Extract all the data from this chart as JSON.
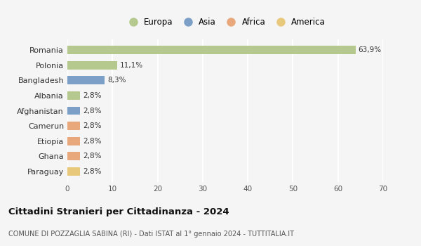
{
  "countries": [
    "Romania",
    "Polonia",
    "Bangladesh",
    "Albania",
    "Afghanistan",
    "Camerun",
    "Etiopia",
    "Ghana",
    "Paraguay"
  ],
  "values": [
    63.9,
    11.1,
    8.3,
    2.8,
    2.8,
    2.8,
    2.8,
    2.8,
    2.8
  ],
  "labels": [
    "63,9%",
    "11,1%",
    "8,3%",
    "2,8%",
    "2,8%",
    "2,8%",
    "2,8%",
    "2,8%",
    "2,8%"
  ],
  "colors": [
    "#b5c98e",
    "#b5c98e",
    "#7b9fc7",
    "#b5c98e",
    "#7b9fc7",
    "#e8a87c",
    "#e8a87c",
    "#e8a87c",
    "#e8c97c"
  ],
  "legend_labels": [
    "Europa",
    "Asia",
    "Africa",
    "America"
  ],
  "legend_colors": [
    "#b5c98e",
    "#7b9fc7",
    "#e8a87c",
    "#e8c97c"
  ],
  "xlim": [
    0,
    70
  ],
  "xticks": [
    0,
    10,
    20,
    30,
    40,
    50,
    60,
    70
  ],
  "title": "Cittadini Stranieri per Cittadinanza - 2024",
  "subtitle": "COMUNE DI POZZAGLIA SABINA (RI) - Dati ISTAT al 1° gennaio 2024 - TUTTITALIA.IT",
  "background_color": "#f5f5f5",
  "plot_bg_color": "#f5f5f5",
  "grid_color": "#ffffff",
  "bar_height": 0.55
}
